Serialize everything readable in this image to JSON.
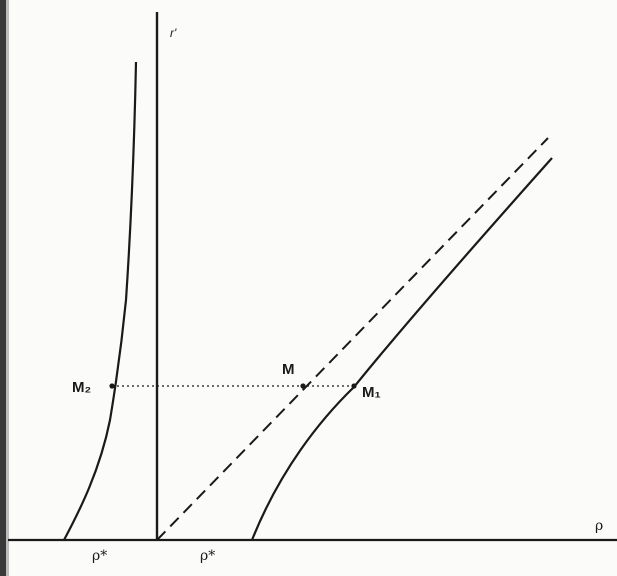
{
  "diagram": {
    "vertical_axis_label": "r'",
    "horizontal_axis_label": "ρ",
    "points": {
      "M": "M",
      "M1": "M₁",
      "M2": "M₂"
    },
    "ticks": {
      "left": "ρ*",
      "right": "ρ*"
    }
  }
}
